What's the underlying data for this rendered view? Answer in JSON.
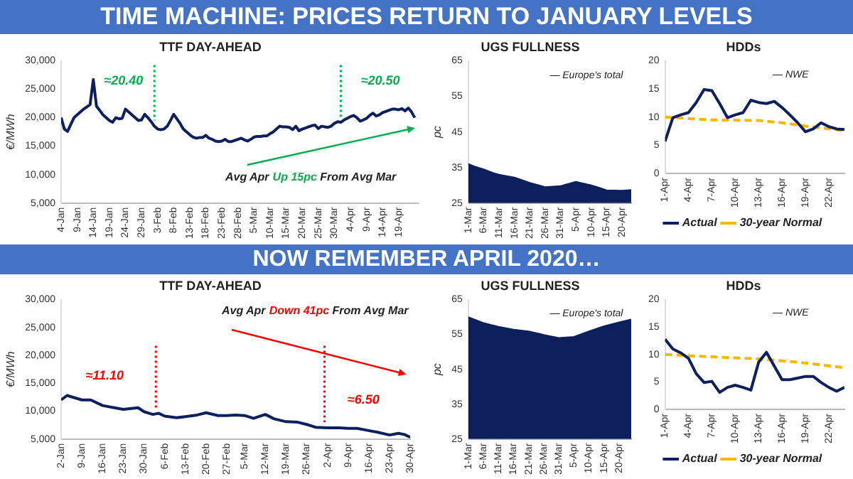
{
  "chart_data": [
    {
      "type": "other",
      "title": "TIME MACHINE: PRICES RETURN TO JANUARY LEVELS"
    },
    {
      "type": "line",
      "title": "TTF DAY-AHEAD",
      "ylabel": "€/MWh",
      "marker": "none",
      "xlim": [
        "--01-04",
        "--04-25"
      ],
      "xticks": [
        {
          "value": "--01-04",
          "label": "4-Jan"
        },
        {
          "value": "--01-09",
          "label": "9-Jan"
        },
        {
          "value": "--01-14",
          "label": "14-Jan"
        },
        {
          "value": "--01-19",
          "label": "19-Jan"
        },
        {
          "value": "--01-24",
          "label": "24-Jan"
        },
        {
          "value": "--01-29",
          "label": "29-Jan"
        },
        {
          "value": "--02-03",
          "label": "3-Feb"
        },
        {
          "value": "--02-08",
          "label": "8-Feb"
        },
        {
          "value": "--02-13",
          "label": "13-Feb"
        },
        {
          "value": "--02-18",
          "label": "18-Feb"
        },
        {
          "value": "--02-23",
          "label": "23-Feb"
        },
        {
          "value": "--02-28",
          "label": "28-Feb"
        },
        {
          "value": "--03-05",
          "label": "5-Mar"
        },
        {
          "value": "--03-10",
          "label": "10-Mar"
        },
        {
          "value": "--03-15",
          "label": "15-Mar"
        },
        {
          "value": "--03-20",
          "label": "20-Mar"
        },
        {
          "value": "--03-25",
          "label": "25-Mar"
        },
        {
          "value": "--03-30",
          "label": "30-Mar"
        },
        {
          "value": "--04-04",
          "label": "4-Apr"
        },
        {
          "value": "--04-09",
          "label": "9-Apr"
        },
        {
          "value": "--04-14",
          "label": "14-Apr"
        },
        {
          "value": "--04-19",
          "label": "19-Apr"
        }
      ],
      "ylim": [
        5000,
        30000
      ],
      "yticks": [
        {
          "value": 5000,
          "label": "5,000"
        },
        {
          "value": 10000,
          "label": "10,000"
        },
        {
          "value": 15000,
          "label": "15,000"
        },
        {
          "value": 20000,
          "label": "20,000"
        },
        {
          "value": 25000,
          "label": "25,000"
        },
        {
          "value": 30000,
          "label": "30,000"
        }
      ],
      "ref_lines": [
        {
          "axis": "x",
          "value": "--02-02",
          "color": "#00b050",
          "line_style": "dotted"
        },
        {
          "axis": "x",
          "value": "--04-01",
          "color": "#00b050",
          "line_style": "dotted"
        }
      ],
      "annotations": [
        "≈20.40",
        "≈20.50",
        "Avg Apr",
        "Up 15pc",
        "From Avg Mar"
      ],
      "series": [
        {
          "color": "#0d1f5c",
          "x": [
            "--01-04",
            "--01-05",
            "--01-06",
            "--01-07",
            "--01-08",
            "--01-09",
            "--01-10",
            "--01-11",
            "--01-12",
            "--01-13",
            "--01-14",
            "--01-15",
            "--01-16",
            "--01-17",
            "--01-18",
            "--01-19",
            "--01-20",
            "--01-21",
            "--01-22",
            "--01-23",
            "--01-24",
            "--01-25",
            "--01-26",
            "--01-27",
            "--01-28",
            "--01-29",
            "--01-30",
            "--01-31",
            "--02-01",
            "--02-02",
            "--02-03",
            "--02-04",
            "--02-05",
            "--02-06",
            "--02-07",
            "--02-08",
            "--02-09",
            "--02-10",
            "--02-11",
            "--02-12",
            "--02-13",
            "--02-14",
            "--02-15",
            "--02-16",
            "--02-17",
            "--02-18",
            "--02-19",
            "--02-20",
            "--02-21",
            "--02-22",
            "--02-23",
            "--02-24",
            "--02-25",
            "--02-26",
            "--02-27",
            "--02-28",
            "--03-01",
            "--03-02",
            "--03-03",
            "--03-04",
            "--03-05",
            "--03-06",
            "--03-07",
            "--03-08",
            "--03-09",
            "--03-10",
            "--03-11",
            "--03-12",
            "--03-13",
            "--03-14",
            "--03-15",
            "--03-16",
            "--03-17",
            "--03-18",
            "--03-19",
            "--03-20",
            "--03-21",
            "--03-22",
            "--03-23",
            "--03-24",
            "--03-25",
            "--03-26",
            "--03-27",
            "--03-28",
            "--03-29",
            "--03-30",
            "--03-31",
            "--04-01",
            "--04-02",
            "--04-03",
            "--04-04",
            "--04-05",
            "--04-06",
            "--04-07",
            "--04-08",
            "--04-09",
            "--04-10",
            "--04-11",
            "--04-12",
            "--04-13",
            "--04-14",
            "--04-15",
            "--04-16",
            "--04-17",
            "--04-18",
            "--04-19",
            "--04-20",
            "--04-21",
            "--04-22",
            "--04-23",
            "--04-24"
          ],
          "values": [
            20000,
            18000,
            17600,
            18800,
            20000,
            20500,
            21000,
            21500,
            21900,
            22300,
            26700,
            22000,
            21300,
            20500,
            20000,
            19500,
            19200,
            20000,
            19800,
            19900,
            21500,
            21000,
            20500,
            20000,
            19500,
            19600,
            20600,
            20000,
            19300,
            18500,
            18000,
            17900,
            18000,
            18500,
            19500,
            20600,
            19800,
            19000,
            18000,
            17500,
            17000,
            16600,
            16400,
            16500,
            16500,
            16900,
            16400,
            16200,
            15900,
            15800,
            15900,
            16200,
            15800,
            15800,
            16000,
            16200,
            16400,
            16100,
            15900,
            16200,
            16600,
            16700,
            16700,
            16800,
            16800,
            17200,
            17500,
            18000,
            18500,
            18400,
            18400,
            18300,
            17900,
            18500,
            17700,
            18000,
            18200,
            18400,
            18600,
            18700,
            18100,
            18500,
            18400,
            18300,
            18500,
            19000,
            19300,
            19200,
            19600,
            19900,
            20200,
            20400,
            20000,
            19400,
            19600,
            19900,
            20400,
            20800,
            20300,
            20500,
            20900,
            21100,
            21300,
            21500,
            21500,
            21400,
            21600,
            21200,
            21700,
            21000,
            20000
          ]
        }
      ]
    },
    {
      "type": "area",
      "title": "UGS FULLNESS",
      "ylabel": "pc",
      "marker": "none",
      "xlim": [
        "--03-01",
        "--04-23"
      ],
      "xticks": [
        {
          "value": "--03-01",
          "label": "1-Mar"
        },
        {
          "value": "--03-06",
          "label": "6-Mar"
        },
        {
          "value": "--03-11",
          "label": "11-Mar"
        },
        {
          "value": "--03-16",
          "label": "16-Mar"
        },
        {
          "value": "--03-21",
          "label": "21-Mar"
        },
        {
          "value": "--03-26",
          "label": "26-Mar"
        },
        {
          "value": "--03-31",
          "label": "31-Mar"
        },
        {
          "value": "--04-05",
          "label": "5-Apr"
        },
        {
          "value": "--04-10",
          "label": "10-Apr"
        },
        {
          "value": "--04-15",
          "label": "15-Apr"
        },
        {
          "value": "--04-20",
          "label": "20-Apr"
        }
      ],
      "ylim": [
        25,
        65
      ],
      "yticks": [
        25,
        35,
        45,
        55,
        65
      ],
      "annotations": [
        "— Europe's total"
      ],
      "series": [
        {
          "color": "#0d1f5c",
          "x": [
            "--03-01",
            "--03-03",
            "--03-06",
            "--03-09",
            "--03-11",
            "--03-16",
            "--03-21",
            "--03-26",
            "--03-31",
            "--04-03",
            "--04-05",
            "--04-07",
            "--04-10",
            "--04-13",
            "--04-15",
            "--04-20",
            "--04-23"
          ],
          "values": [
            36,
            35.3,
            34.5,
            33.5,
            33,
            32.2,
            30.7,
            29.5,
            29.8,
            30.5,
            31,
            30.6,
            30,
            29.2,
            28.6,
            28.5,
            28.7
          ]
        }
      ]
    },
    {
      "type": "line",
      "title": "HDDs",
      "marker": "none",
      "legend": "bottom",
      "xlim": [
        "--04-01",
        "--04-24"
      ],
      "xticks": [
        {
          "value": "--04-01",
          "label": "1-Apr"
        },
        {
          "value": "--04-04",
          "label": "4-Apr"
        },
        {
          "value": "--04-07",
          "label": "7-Apr"
        },
        {
          "value": "--04-10",
          "label": "10-Apr"
        },
        {
          "value": "--04-13",
          "label": "13-Apr"
        },
        {
          "value": "--04-16",
          "label": "16-Apr"
        },
        {
          "value": "--04-19",
          "label": "19-Apr"
        },
        {
          "value": "--04-22",
          "label": "22-Apr"
        }
      ],
      "ylim": [
        0,
        20
      ],
      "yticks": [
        0,
        5,
        10,
        15,
        20
      ],
      "annotations": [
        "— NWE"
      ],
      "series": [
        {
          "name": "Actual",
          "color": "#0d1f5c",
          "x": [
            "--04-01",
            "--04-02",
            "--04-03",
            "--04-04",
            "--04-05",
            "--04-06",
            "--04-07",
            "--04-08",
            "--04-09",
            "--04-10",
            "--04-11",
            "--04-12",
            "--04-13",
            "--04-14",
            "--04-15",
            "--04-16",
            "--04-17",
            "--04-18",
            "--04-19",
            "--04-20",
            "--04-21",
            "--04-22",
            "--04-23",
            "--04-24"
          ],
          "values": [
            5.7,
            9.9,
            10.4,
            10.8,
            12.6,
            14.9,
            14.7,
            12.4,
            9.9,
            10.4,
            10.8,
            13,
            12.6,
            12.4,
            12.8,
            11.7,
            10.4,
            9,
            7.4,
            7.9,
            9,
            8.3,
            7.9,
            7.8
          ]
        },
        {
          "name": "30-year Normal",
          "color": "#f5b800",
          "line_style": "dashed",
          "x": [
            "--04-01",
            "--04-07",
            "--04-13",
            "--04-16",
            "--04-19",
            "--04-24"
          ],
          "values": [
            10,
            9.5,
            9.4,
            9,
            8.4,
            7.6
          ]
        }
      ]
    },
    {
      "type": "other",
      "title": "NOW REMEMBER APRIL 2020…"
    },
    {
      "type": "line",
      "title": "TTF DAY-AHEAD",
      "ylabel": "€/MWh",
      "marker": "none",
      "xlim": [
        "--01-02",
        "--04-30"
      ],
      "xticks": [
        {
          "value": "--01-02",
          "label": "2-Jan"
        },
        {
          "value": "--01-09",
          "label": "9-Jan"
        },
        {
          "value": "--01-16",
          "label": "16-Jan"
        },
        {
          "value": "--01-23",
          "label": "23-Jan"
        },
        {
          "value": "--01-30",
          "label": "30-Jan"
        },
        {
          "value": "--02-06",
          "label": "6-Feb"
        },
        {
          "value": "--02-13",
          "label": "13-Feb"
        },
        {
          "value": "--02-20",
          "label": "20-Feb"
        },
        {
          "value": "--02-27",
          "label": "27-Feb"
        },
        {
          "value": "--03-05",
          "label": "5-Mar"
        },
        {
          "value": "--03-12",
          "label": "12-Mar"
        },
        {
          "value": "--03-19",
          "label": "19-Mar"
        },
        {
          "value": "--03-26",
          "label": "26-Mar"
        },
        {
          "value": "--04-02",
          "label": "2-Apr"
        },
        {
          "value": "--04-09",
          "label": "9-Apr"
        },
        {
          "value": "--04-16",
          "label": "16-Apr"
        },
        {
          "value": "--04-23",
          "label": "23-Apr"
        },
        {
          "value": "--04-30",
          "label": "30-Apr"
        }
      ],
      "ylim": [
        5000,
        30000
      ],
      "yticks": [
        {
          "value": 5000,
          "label": "5,000"
        },
        {
          "value": 10000,
          "label": "10,000"
        },
        {
          "value": 15000,
          "label": "15,000"
        },
        {
          "value": 20000,
          "label": "20,000"
        },
        {
          "value": 25000,
          "label": "25,000"
        },
        {
          "value": 30000,
          "label": "30,000"
        }
      ],
      "ref_lines": [
        {
          "axis": "x",
          "value": "--02-03",
          "color": "#ff0000",
          "line_style": "dotted"
        },
        {
          "axis": "x",
          "value": "--04-01",
          "color": "#ff0000",
          "line_style": "dotted"
        }
      ],
      "annotations": [
        "Avg Apr",
        "Down 41pc",
        "From Avg Mar",
        "≈11.10",
        "≈6.50"
      ],
      "series": [
        {
          "color": "#0d1f5c",
          "x": [
            "--01-02",
            "--01-04",
            "--01-09",
            "--01-12",
            "--01-16",
            "--01-20",
            "--01-23",
            "--01-28",
            "--01-30",
            "--02-02",
            "--02-04",
            "--02-06",
            "--02-10",
            "--02-13",
            "--02-17",
            "--02-20",
            "--02-24",
            "--02-27",
            "--03-02",
            "--03-05",
            "--03-08",
            "--03-12",
            "--03-15",
            "--03-19",
            "--03-23",
            "--03-26",
            "--03-29",
            "--04-02",
            "--04-06",
            "--04-09",
            "--04-12",
            "--04-15",
            "--04-19",
            "--04-23",
            "--04-26",
            "--04-28",
            "--04-30"
          ],
          "values": [
            12000,
            12800,
            12000,
            12000,
            11000,
            10600,
            10300,
            10600,
            9900,
            9400,
            9600,
            9100,
            8800,
            9000,
            9300,
            9700,
            9200,
            9200,
            9300,
            9200,
            8700,
            9400,
            8600,
            8100,
            8000,
            7600,
            7100,
            7000,
            7000,
            6900,
            6900,
            6600,
            6200,
            5700,
            6000,
            5800,
            5300
          ]
        }
      ]
    },
    {
      "type": "area",
      "title": "UGS FULLNESS",
      "ylabel": "pc",
      "marker": "none",
      "xlim": [
        "--03-01",
        "--04-24"
      ],
      "xticks": [
        {
          "value": "--03-01",
          "label": "1-Mar"
        },
        {
          "value": "--03-06",
          "label": "6-Mar"
        },
        {
          "value": "--03-11",
          "label": "11-Mar"
        },
        {
          "value": "--03-16",
          "label": "16-Mar"
        },
        {
          "value": "--03-21",
          "label": "21-Mar"
        },
        {
          "value": "--03-26",
          "label": "26-Mar"
        },
        {
          "value": "--03-31",
          "label": "31-Mar"
        },
        {
          "value": "--04-05",
          "label": "5-Apr"
        },
        {
          "value": "--04-10",
          "label": "10-Apr"
        },
        {
          "value": "--04-15",
          "label": "15-Apr"
        },
        {
          "value": "--04-20",
          "label": "20-Apr"
        }
      ],
      "ylim": [
        25,
        65
      ],
      "yticks": [
        25,
        35,
        45,
        55,
        65
      ],
      "annotations": [
        "— Europe's total"
      ],
      "series": [
        {
          "color": "#0d1f5c",
          "x": [
            "--03-01",
            "--03-06",
            "--03-11",
            "--03-16",
            "--03-21",
            "--03-26",
            "--03-31",
            "--04-05",
            "--04-10",
            "--04-15",
            "--04-20",
            "--04-24"
          ],
          "values": [
            60,
            58.3,
            57.2,
            56.4,
            55.9,
            54.9,
            54,
            54.3,
            55.9,
            57.4,
            58.5,
            59.3
          ]
        }
      ]
    },
    {
      "type": "line",
      "title": "HDDs",
      "marker": "none",
      "legend": "bottom",
      "xlim": [
        "--04-01",
        "--04-24"
      ],
      "xticks": [
        {
          "value": "--04-01",
          "label": "1-Apr"
        },
        {
          "value": "--04-04",
          "label": "4-Apr"
        },
        {
          "value": "--04-07",
          "label": "7-Apr"
        },
        {
          "value": "--04-10",
          "label": "10-Apr"
        },
        {
          "value": "--04-13",
          "label": "13-Apr"
        },
        {
          "value": "--04-16",
          "label": "16-Apr"
        },
        {
          "value": "--04-19",
          "label": "19-Apr"
        },
        {
          "value": "--04-22",
          "label": "22-Apr"
        }
      ],
      "ylim": [
        0,
        20
      ],
      "yticks": [
        0,
        5,
        10,
        15,
        20
      ],
      "annotations": [
        "— NWE"
      ],
      "series": [
        {
          "name": "Actual",
          "color": "#0d1f5c",
          "x": [
            "--04-01",
            "--04-02",
            "--04-03",
            "--04-04",
            "--04-05",
            "--04-06",
            "--04-07",
            "--04-08",
            "--04-09",
            "--04-10",
            "--04-11",
            "--04-12",
            "--04-13",
            "--04-14",
            "--04-15",
            "--04-16",
            "--04-17",
            "--04-18",
            "--04-19",
            "--04-20",
            "--04-21",
            "--04-22",
            "--04-23",
            "--04-24"
          ],
          "values": [
            12.8,
            11,
            10.3,
            9.3,
            6.5,
            4.9,
            5.1,
            3.1,
            4,
            4.4,
            4,
            3.5,
            8.6,
            10.4,
            7.9,
            5.4,
            5.4,
            5.7,
            6,
            6,
            4.9,
            4,
            3.3,
            4
          ]
        },
        {
          "name": "30-year Normal",
          "color": "#f5b800",
          "line_style": "dashed",
          "x": [
            "--04-01",
            "--04-08",
            "--04-13",
            "--04-18",
            "--04-24"
          ],
          "values": [
            10,
            9.5,
            9.2,
            8.6,
            7.6
          ]
        }
      ]
    }
  ]
}
